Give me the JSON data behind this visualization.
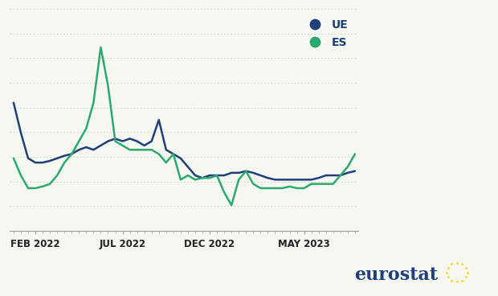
{
  "ue_color": "#1e3f7a",
  "es_color": "#2aaa6e",
  "background_color": "#f7f7f2",
  "ue_label": "UE",
  "es_label": "ES",
  "x_tick_labels": [
    "FEB 2022",
    "JUL 2022",
    "DEC 2022",
    "MAY 2023"
  ],
  "x_tick_positions": [
    3,
    15,
    27,
    40
  ],
  "ue_values": [
    14.0,
    10.5,
    7.5,
    7.0,
    7.0,
    7.2,
    7.5,
    7.8,
    8.0,
    8.5,
    8.8,
    8.5,
    9.0,
    9.5,
    9.8,
    9.5,
    9.8,
    9.5,
    9.0,
    9.5,
    12.0,
    8.5,
    8.0,
    7.5,
    6.5,
    5.5,
    5.2,
    5.5,
    5.5,
    5.5,
    5.8,
    5.8,
    6.0,
    5.8,
    5.5,
    5.2,
    5.0,
    5.0,
    5.0,
    5.0,
    5.0,
    5.0,
    5.2,
    5.5,
    5.5,
    5.5,
    5.8,
    6.0
  ],
  "es_values": [
    7.5,
    5.5,
    4.0,
    4.0,
    4.2,
    4.5,
    5.5,
    7.0,
    8.0,
    9.5,
    11.0,
    14.0,
    20.5,
    16.0,
    9.5,
    9.0,
    8.5,
    8.5,
    8.5,
    8.5,
    8.0,
    7.0,
    8.0,
    5.0,
    5.5,
    5.0,
    5.2,
    5.2,
    5.5,
    3.5,
    2.0,
    5.0,
    6.0,
    4.5,
    4.0,
    4.0,
    4.0,
    4.0,
    4.2,
    4.0,
    4.0,
    4.5,
    4.5,
    4.5,
    4.5,
    5.5,
    6.5,
    8.0
  ],
  "ylim": [
    -1,
    25
  ],
  "xlim": [
    -0.5,
    47.5
  ],
  "linewidth": 1.8,
  "legend_marker_size": 11,
  "legend_fontsize": 10,
  "tick_fontsize": 8.5,
  "eurostat_fontsize": 16,
  "n_grid_lines": 9,
  "grid_color": "#cccccc",
  "grid_linewidth": 0.6
}
